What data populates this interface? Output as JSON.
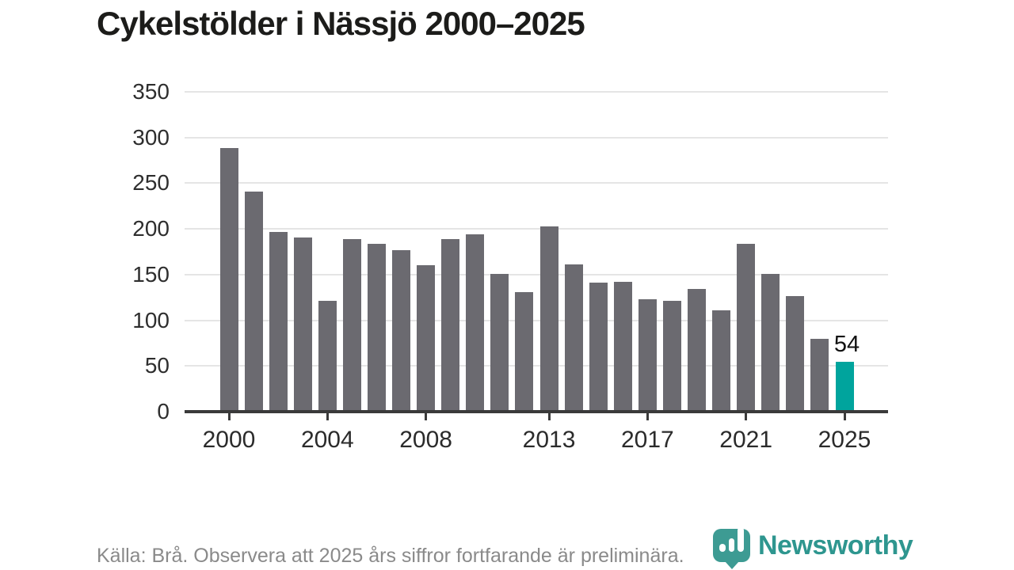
{
  "header": {
    "title": "Cykelstölder i Nässjö 2000–2025"
  },
  "chart_data": {
    "type": "bar",
    "title": "Cykelstölder i Nässjö 2000–2025",
    "xlabel": "",
    "ylabel": "",
    "x": [
      2000,
      2001,
      2002,
      2003,
      2004,
      2005,
      2006,
      2007,
      2008,
      2009,
      2010,
      2011,
      2012,
      2013,
      2014,
      2015,
      2016,
      2017,
      2018,
      2019,
      2020,
      2021,
      2022,
      2023,
      2024,
      2025
    ],
    "values": [
      288,
      240,
      196,
      190,
      120,
      188,
      183,
      176,
      159,
      188,
      193,
      150,
      130,
      202,
      160,
      140,
      141,
      122,
      120,
      133,
      110,
      183,
      150,
      126,
      79,
      54
    ],
    "ylim": [
      0,
      350
    ],
    "yticks": [
      0,
      50,
      100,
      150,
      200,
      250,
      300,
      350
    ],
    "xticks": [
      2000,
      2004,
      2008,
      2013,
      2017,
      2021,
      2025
    ],
    "grid": true,
    "legend": false,
    "bar_color": "#6b6a70",
    "highlight_year": 2025,
    "highlight_color": "#00a49d",
    "annotation": {
      "year": 2025,
      "text": "54"
    }
  },
  "footer": {
    "source_text": "Källa: Brå. Observera att 2025 års siffror fortfarande är preliminära.",
    "brand": "Newsworthy",
    "brand_color": "#2e968f"
  }
}
